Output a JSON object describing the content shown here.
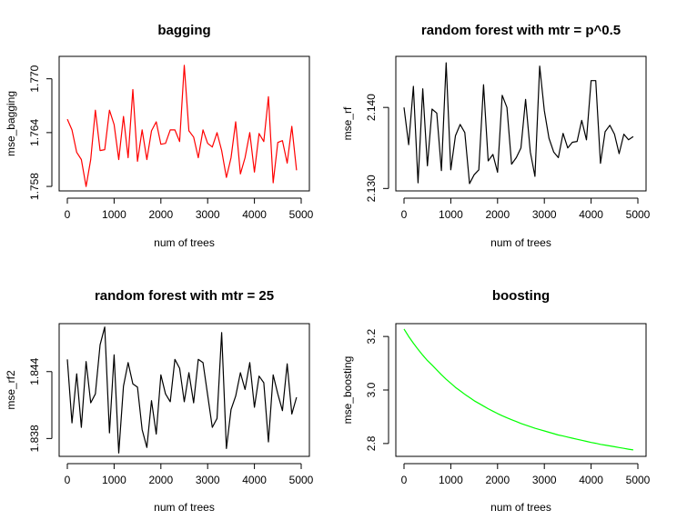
{
  "chart_data": [
    {
      "type": "line",
      "title": "bagging",
      "xlabel": "num of trees",
      "ylabel": "mse_bagging",
      "xlim": [
        0,
        5000
      ],
      "ylim": [
        1.7575,
        1.7725
      ],
      "x_ticks": [
        0,
        1000,
        2000,
        3000,
        4000,
        5000
      ],
      "y_ticks": [
        1.758,
        1.764,
        1.77
      ],
      "x_tick_labels": [
        "0",
        "1000",
        "2000",
        "3000",
        "4000",
        "5000"
      ],
      "y_tick_labels": [
        "1.758",
        "1.764",
        "1.770"
      ],
      "color": "#ff0000",
      "x": [
        0,
        100,
        200,
        300,
        400,
        500,
        600,
        700,
        800,
        900,
        1000,
        1100,
        1200,
        1300,
        1400,
        1500,
        1600,
        1700,
        1800,
        1900,
        2000,
        2100,
        2200,
        2300,
        2400,
        2500,
        2600,
        2700,
        2800,
        2900,
        3000,
        3100,
        3200,
        3300,
        3400,
        3500,
        3600,
        3700,
        3800,
        3900,
        4000,
        4100,
        4200,
        4300,
        4400,
        4500,
        4600,
        4700,
        4800,
        4900
      ],
      "values": [
        1.7655,
        1.7643,
        1.7618,
        1.761,
        1.758,
        1.761,
        1.7665,
        1.762,
        1.7621,
        1.7665,
        1.7649,
        1.761,
        1.7658,
        1.7612,
        1.7688,
        1.7608,
        1.7643,
        1.761,
        1.7642,
        1.7652,
        1.7627,
        1.7628,
        1.7643,
        1.7643,
        1.763,
        1.7715,
        1.7642,
        1.7635,
        1.7612,
        1.7643,
        1.7628,
        1.7624,
        1.764,
        1.762,
        1.759,
        1.7612,
        1.7652,
        1.7594,
        1.7612,
        1.764,
        1.7596,
        1.7639,
        1.763,
        1.768,
        1.7584,
        1.7629,
        1.7631,
        1.7606,
        1.7647,
        1.7598
      ]
    },
    {
      "type": "line",
      "title": "random forest with mtr = p^0.5",
      "xlabel": "num of trees",
      "ylabel": "mse_rf",
      "xlim": [
        0,
        5000
      ],
      "ylim": [
        2.1297,
        2.1463
      ],
      "x_ticks": [
        0,
        1000,
        2000,
        3000,
        4000,
        5000
      ],
      "y_ticks": [
        2.13,
        2.14
      ],
      "x_tick_labels": [
        "0",
        "1000",
        "2000",
        "3000",
        "4000",
        "5000"
      ],
      "y_tick_labels": [
        "2.130",
        "2.140"
      ],
      "color": "#000000",
      "x": [
        0,
        100,
        200,
        300,
        400,
        500,
        600,
        700,
        800,
        900,
        1000,
        1100,
        1200,
        1300,
        1400,
        1500,
        1600,
        1700,
        1800,
        1900,
        2000,
        2100,
        2200,
        2300,
        2400,
        2500,
        2600,
        2700,
        2800,
        2900,
        3000,
        3100,
        3200,
        3300,
        3400,
        3500,
        3600,
        3700,
        3800,
        3900,
        4000,
        4100,
        4200,
        4300,
        4400,
        4500,
        4600,
        4700,
        4800,
        4900
      ],
      "values": [
        2.14,
        2.1354,
        2.1426,
        2.1307,
        2.1423,
        2.1328,
        2.1398,
        2.1393,
        2.1322,
        2.1455,
        2.1323,
        2.1365,
        2.1379,
        2.1369,
        2.1306,
        2.1317,
        2.1323,
        2.1428,
        2.1334,
        2.1342,
        2.132,
        2.1415,
        2.14,
        2.133,
        2.1338,
        2.135,
        2.141,
        2.1345,
        2.1315,
        2.1451,
        2.1396,
        2.1362,
        2.1345,
        2.1338,
        2.1368,
        2.135,
        2.1357,
        2.1358,
        2.1384,
        2.136,
        2.1433,
        2.1433,
        2.1331,
        2.137,
        2.1378,
        2.1367,
        2.1343,
        2.1367,
        2.136,
        2.1364
      ]
    },
    {
      "type": "line",
      "title": "random forest with mtr = 25",
      "xlabel": "num of trees",
      "ylabel": "mse_rf2",
      "xlim": [
        0,
        5000
      ],
      "ylim": [
        1.8364,
        1.8483
      ],
      "x_ticks": [
        0,
        1000,
        2000,
        3000,
        4000,
        5000
      ],
      "y_ticks": [
        1.838,
        1.844
      ],
      "x_tick_labels": [
        "0",
        "1000",
        "2000",
        "3000",
        "4000",
        "5000"
      ],
      "y_tick_labels": [
        "1.838",
        "1.844"
      ],
      "color": "#000000",
      "x": [
        0,
        100,
        200,
        300,
        400,
        500,
        600,
        700,
        800,
        900,
        1000,
        1100,
        1200,
        1300,
        1400,
        1500,
        1600,
        1700,
        1800,
        1900,
        2000,
        2100,
        2200,
        2300,
        2400,
        2500,
        2600,
        2700,
        2800,
        2900,
        3000,
        3100,
        3200,
        3300,
        3400,
        3500,
        3600,
        3700,
        3800,
        3900,
        4000,
        4100,
        4200,
        4300,
        4400,
        4500,
        4600,
        4700,
        4800,
        4900
      ],
      "values": [
        1.8451,
        1.8394,
        1.8438,
        1.839,
        1.8449,
        1.8412,
        1.842,
        1.8464,
        1.848,
        1.8385,
        1.8455,
        1.8367,
        1.8427,
        1.8448,
        1.8429,
        1.8426,
        1.8388,
        1.8372,
        1.8414,
        1.8384,
        1.8437,
        1.842,
        1.8413,
        1.8451,
        1.8443,
        1.8413,
        1.8439,
        1.8412,
        1.8451,
        1.8448,
        1.8419,
        1.839,
        1.8398,
        1.8475,
        1.8371,
        1.8406,
        1.8418,
        1.8439,
        1.8424,
        1.8448,
        1.8408,
        1.8436,
        1.843,
        1.8377,
        1.8437,
        1.842,
        1.8405,
        1.8447,
        1.8402,
        1.8417
      ]
    },
    {
      "type": "line",
      "title": "boosting",
      "xlabel": "num of trees",
      "ylabel": "mse_boosting",
      "xlim": [
        0,
        5000
      ],
      "ylim": [
        2.752,
        3.248
      ],
      "x_ticks": [
        0,
        1000,
        2000,
        3000,
        4000,
        5000
      ],
      "y_ticks": [
        2.8,
        3.0,
        3.2
      ],
      "x_tick_labels": [
        "0",
        "1000",
        "2000",
        "3000",
        "4000",
        "5000"
      ],
      "y_tick_labels": [
        "2.8",
        "3.0",
        "3.2"
      ],
      "color": "#00ff00",
      "x": [
        0,
        100,
        200,
        300,
        400,
        500,
        600,
        700,
        800,
        900,
        1000,
        1100,
        1200,
        1300,
        1400,
        1500,
        1600,
        1700,
        1800,
        1900,
        2000,
        2100,
        2200,
        2300,
        2400,
        2500,
        2600,
        2700,
        2800,
        2900,
        3000,
        3100,
        3200,
        3300,
        3400,
        3500,
        3600,
        3700,
        3800,
        3900,
        4000,
        4100,
        4200,
        4300,
        4400,
        4500,
        4600,
        4700,
        4800,
        4900
      ],
      "values": [
        3.228,
        3.2,
        3.175,
        3.152,
        3.13,
        3.11,
        3.093,
        3.075,
        3.057,
        3.04,
        3.025,
        3.01,
        2.997,
        2.984,
        2.972,
        2.96,
        2.95,
        2.94,
        2.93,
        2.921,
        2.912,
        2.904,
        2.896,
        2.889,
        2.882,
        2.875,
        2.869,
        2.863,
        2.857,
        2.852,
        2.847,
        2.842,
        2.837,
        2.832,
        2.828,
        2.824,
        2.82,
        2.816,
        2.812,
        2.808,
        2.804,
        2.801,
        2.797,
        2.794,
        2.791,
        2.788,
        2.785,
        2.782,
        2.779,
        2.776
      ]
    }
  ]
}
